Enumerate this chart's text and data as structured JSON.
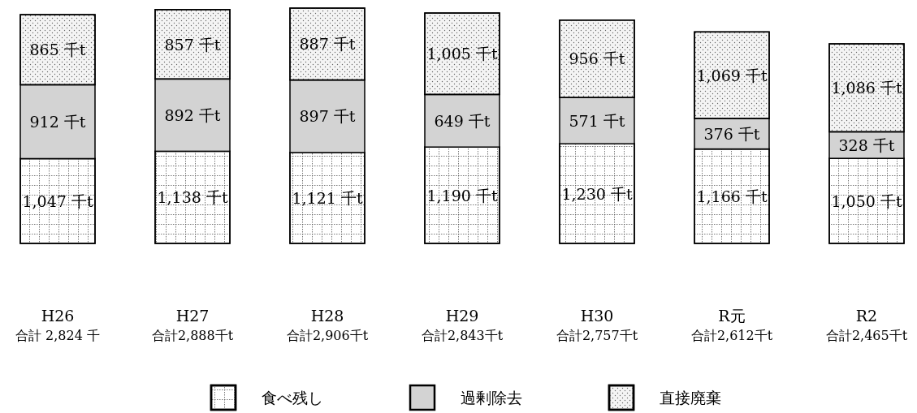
{
  "chart_data": {
    "type": "bar",
    "stacked": true,
    "legend": "bottom",
    "categories": [
      "H26",
      "H27",
      "H28",
      "H29",
      "H30",
      "R元",
      "R2"
    ],
    "series": [
      {
        "name": "食べ残し",
        "color": "#ffffff",
        "values": [
          1047,
          1138,
          1121,
          1190,
          1230,
          1166,
          1050
        ],
        "value_labels": [
          "1,047 千t",
          "1,138 千t",
          "1,121 千t",
          "1,190 千t",
          "1,230 千t",
          "1,166 千t",
          "1,050 千t"
        ]
      },
      {
        "name": "過剰除去",
        "color": "#d3d3d3",
        "values": [
          912,
          892,
          897,
          649,
          571,
          376,
          328
        ],
        "value_labels": [
          "912 千t",
          "892 千t",
          "897 千t",
          "649 千t",
          "571 千t",
          "376 千t",
          "328 千t"
        ]
      },
      {
        "name": "直接廃棄",
        "color": "#f4f4f4",
        "values": [
          865,
          857,
          887,
          1005,
          956,
          1069,
          1086
        ],
        "value_labels": [
          "865 千t",
          "857 千t",
          "887 千t",
          "1,005 千t",
          "956 千t",
          "1,069 千t",
          "1,086 千t"
        ]
      }
    ],
    "annotations": [
      "合計 2,824 千",
      "合計2,888千t",
      "合計2,906千t",
      "合計2,843千t",
      "合計2,757千t",
      "合計2,612千t",
      "合計2,465千t"
    ]
  }
}
